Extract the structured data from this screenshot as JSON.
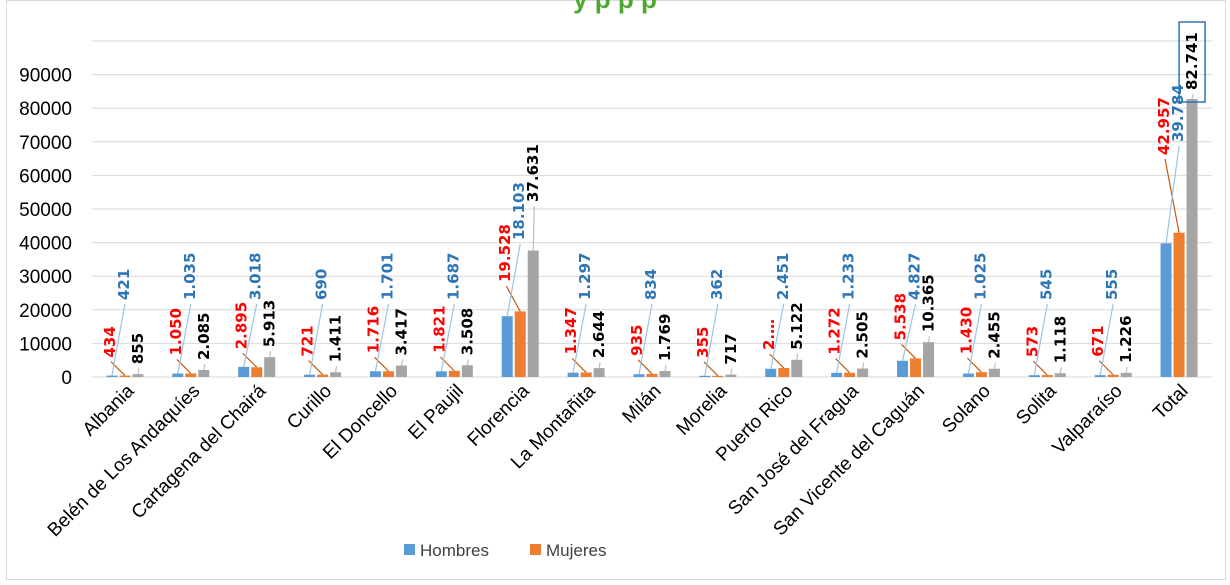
{
  "chart_data": {
    "type": "bar",
    "title": "y p p p",
    "categories": [
      "Albania",
      "Belén de Los Andaquíes",
      "Cartagena del Chairá",
      "Curillo",
      "El Doncello",
      "El Paujil",
      "Florencia",
      "La Montañita",
      "Milán",
      "Morelia",
      "Puerto Rico",
      "San José del Fragua",
      "San Vicente del Caguán",
      "Solano",
      "Solita",
      "Valparaíso",
      "Total"
    ],
    "series": [
      {
        "name": "Hombres",
        "color": "#5b9bd5",
        "label_color": "#2e75b6",
        "values": [
          421,
          1035,
          3018,
          690,
          1701,
          1687,
          18103,
          1297,
          834,
          362,
          2451,
          1233,
          4827,
          1025,
          545,
          555,
          39784
        ],
        "labels": [
          "421",
          "1.035",
          "3.018",
          "690",
          "1.701",
          "1.687",
          "18.103",
          "1.297",
          "834",
          "362",
          "2.451",
          "1.233",
          "4.827",
          "1.025",
          "545",
          "555",
          "39.784"
        ]
      },
      {
        "name": "Mujeres",
        "color": "#ed7d31",
        "label_color": "#ff0000",
        "values": [
          434,
          1050,
          2895,
          721,
          1716,
          1821,
          19528,
          1347,
          935,
          355,
          2671,
          1272,
          5538,
          1430,
          573,
          671,
          42957
        ],
        "labels": [
          "434",
          "1.050",
          "2.895",
          "721",
          "1.716",
          "1.821",
          "19.528",
          "1.347",
          "935",
          "355",
          "2.…",
          "1.272",
          "5.538",
          "1.430",
          "573",
          "671",
          "42.957"
        ]
      },
      {
        "name": "",
        "color": "#a5a5a5",
        "label_color": "#000000",
        "values": [
          855,
          2085,
          5913,
          1411,
          3417,
          3508,
          37631,
          2644,
          1769,
          717,
          5122,
          2505,
          10365,
          2455,
          1118,
          1226,
          82741
        ],
        "labels": [
          "855",
          "2.085",
          "5.913",
          "1.411",
          "3.417",
          "3.508",
          "37.631",
          "2.644",
          "1.769",
          "717",
          "5.122",
          "2.505",
          "10.365",
          "2.455",
          "1.118",
          "1.226",
          "82.741"
        ]
      }
    ],
    "yticks": [
      0,
      10000,
      20000,
      30000,
      40000,
      50000,
      60000,
      70000,
      80000,
      90000
    ],
    "ylim": [
      0,
      100000
    ],
    "xlabel": "",
    "ylabel": "",
    "grid": "horizontal",
    "legend_position": "bottom",
    "legend": [
      "Hombres",
      "Mujeres"
    ],
    "title_color": "#4ea72e"
  }
}
